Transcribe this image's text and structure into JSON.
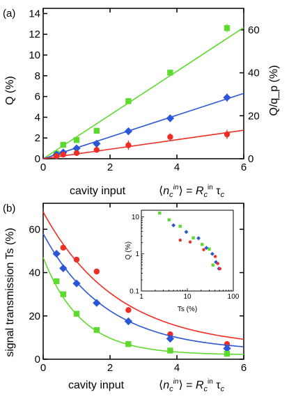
{
  "colors": {
    "red": "#ee2d24",
    "blue": "#2b57d6",
    "green": "#5ed92e"
  },
  "chart_data": [
    {
      "type": "scatter",
      "panel_label": "(a)",
      "xlabel": "cavity input",
      "xlabel_formula": "⟨nc^in⟩ = Rc^in τc",
      "ylabel": "Q (%)",
      "ylabel_right": "Q/q_p (%)",
      "xlim": [
        0,
        6
      ],
      "ylim": [
        0,
        14.5
      ],
      "ylim_right": [
        0,
        70
      ],
      "xticks": [
        "0",
        "2",
        "4",
        "6"
      ],
      "yticks": [
        "0",
        "2",
        "4",
        "6",
        "8",
        "10",
        "12",
        "14"
      ],
      "yticks_right": [
        "0",
        "20",
        "40",
        "60"
      ],
      "series": [
        {
          "color": "green",
          "marker": "square",
          "x": [
            0.4,
            0.6,
            1.0,
            1.6,
            2.55,
            3.8,
            5.5
          ],
          "y": [
            0.5,
            1.35,
            1.8,
            2.7,
            5.55,
            8.3,
            12.6
          ],
          "err": [
            0.15,
            0.15,
            0.15,
            0.2,
            0.25,
            0.3,
            0.4
          ],
          "fit": [
            [
              0.0,
              0.0
            ],
            [
              6.0,
              12.65
            ]
          ]
        },
        {
          "color": "blue",
          "marker": "diamond",
          "x": [
            0.4,
            0.6,
            1.0,
            1.6,
            2.55,
            3.8,
            5.5
          ],
          "y": [
            0.4,
            0.6,
            1.0,
            1.45,
            2.65,
            3.9,
            5.9
          ],
          "err": [
            0.15,
            0.15,
            0.2,
            0.2,
            0.3,
            0.35,
            0.4
          ],
          "fit": [
            [
              0.0,
              0.0
            ],
            [
              6.0,
              6.3
            ]
          ]
        },
        {
          "color": "red",
          "marker": "circle",
          "x": [
            0.4,
            0.6,
            1.0,
            1.6,
            2.55,
            3.8,
            5.5
          ],
          "y": [
            0.25,
            0.4,
            0.55,
            0.85,
            1.3,
            2.1,
            2.35
          ],
          "err": [
            0.15,
            0.15,
            0.2,
            0.25,
            0.45,
            0.35,
            0.45
          ],
          "fit": [
            [
              0.0,
              0.0
            ],
            [
              6.0,
              2.75
            ]
          ]
        }
      ]
    },
    {
      "type": "scatter",
      "panel_label": "(b)",
      "xlabel": "cavity input",
      "xlabel_formula": "⟨nc^in⟩ = Rc^in τc",
      "ylabel": "signal transmission Ts (%)",
      "xlim": [
        0,
        6
      ],
      "ylim": [
        0,
        72
      ],
      "xticks": [
        "0",
        "2",
        "4",
        "6"
      ],
      "yticks": [
        "0",
        "20",
        "40",
        "60"
      ],
      "series": [
        {
          "color": "red",
          "marker": "circle",
          "x": [
            0.6,
            1.0,
            1.6,
            2.55,
            3.8,
            5.5
          ],
          "y": [
            51.5,
            46.0,
            40.5,
            22.7,
            11.5,
            7.0
          ],
          "fit": {
            "amplitude": 63.0,
            "decay": 0.45,
            "offset": 5.0
          }
        },
        {
          "color": "blue",
          "marker": "diamond",
          "x": [
            0.4,
            0.6,
            1.0,
            1.6,
            2.55,
            3.8,
            5.5
          ],
          "y": [
            48.7,
            42.0,
            35.0,
            26.0,
            17.5,
            9.5,
            5.0
          ],
          "fit": {
            "amplitude": 54.5,
            "decay": 0.53,
            "offset": 3.5
          }
        },
        {
          "color": "green",
          "marker": "square",
          "x": [
            0.4,
            0.6,
            1.0,
            1.6,
            2.55,
            3.8,
            5.5
          ],
          "y": [
            36.0,
            30.0,
            21.0,
            13.5,
            7.0,
            4.0,
            2.5
          ],
          "fit": {
            "amplitude": 45.0,
            "decay": 0.88,
            "offset": 2.0
          }
        }
      ]
    },
    {
      "type": "scatter",
      "role": "inset",
      "xlabel": "Ts (%)",
      "ylabel": "Q (%)",
      "xscale": "log",
      "yscale": "log",
      "xlim": [
        1,
        100
      ],
      "ylim": [
        0.1,
        15
      ],
      "xticks": [
        "1",
        "10",
        "100"
      ],
      "yticks": [
        "0.1",
        "1",
        "10"
      ],
      "series": [
        {
          "color": "green",
          "marker": "square",
          "x": [
            2.5,
            4.0,
            7.0,
            13.5,
            21.0,
            30.0,
            36.0
          ],
          "y": [
            12.6,
            8.3,
            5.55,
            2.7,
            1.8,
            1.35,
            0.5
          ]
        },
        {
          "color": "blue",
          "marker": "diamond",
          "x": [
            5.0,
            9.5,
            17.5,
            26.0,
            35.0,
            42.0,
            48.7
          ],
          "y": [
            5.9,
            3.9,
            2.65,
            1.45,
            1.0,
            0.6,
            0.4
          ]
        },
        {
          "color": "red",
          "marker": "circle",
          "x": [
            7.0,
            11.5,
            22.7,
            40.5,
            46.0,
            51.5
          ],
          "y": [
            2.35,
            2.1,
            1.3,
            0.85,
            0.55,
            0.4
          ]
        }
      ]
    }
  ]
}
